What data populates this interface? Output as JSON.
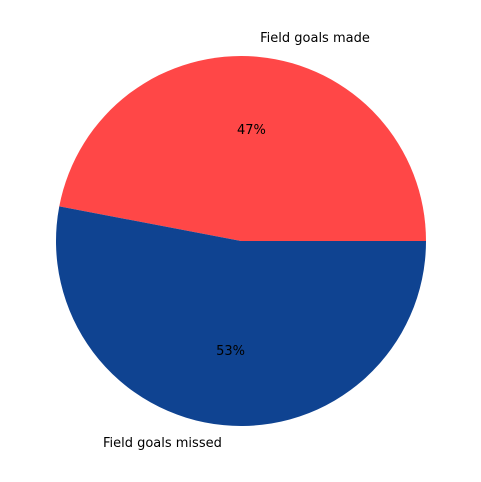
{
  "chart_data": {
    "type": "pie",
    "title": "",
    "categories": [
      "Field goals made",
      "Field goals missed"
    ],
    "values": [
      47,
      53
    ],
    "value_labels": [
      "47%",
      "53%"
    ],
    "colors": [
      "#FF4747",
      "#0F4391"
    ],
    "start_angle_deg": 0,
    "direction": "counterclockwise",
    "legend": "none"
  }
}
